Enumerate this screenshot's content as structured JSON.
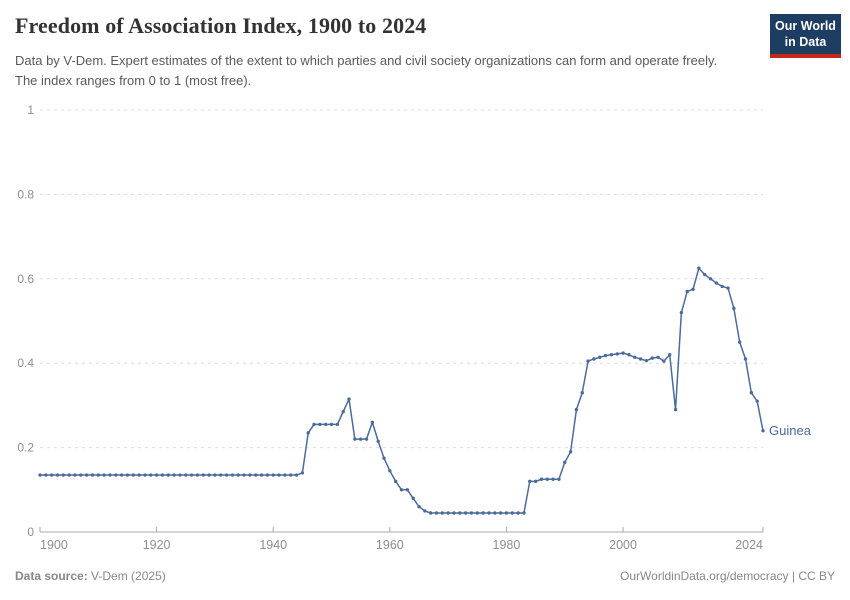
{
  "header": {
    "title": "Freedom of Association Index, 1900 to 2024",
    "subtitle": "Data by V-Dem. Expert estimates of the extent to which parties and civil society organizations can form and operate freely. The index ranges from 0 to 1 (most free).",
    "logo": {
      "line1": "Our World",
      "line2": "in Data",
      "bg_color": "#1d3d63",
      "accent_color": "#c5281c"
    }
  },
  "chart_data": {
    "type": "line",
    "title": "Freedom of Association Index, 1900 to 2024",
    "xlabel": "",
    "ylabel": "",
    "x_range": [
      1900,
      2024
    ],
    "y_range": [
      0,
      1
    ],
    "grid": true,
    "x_axis": {
      "ticks": [
        1900,
        1920,
        1940,
        1960,
        1980,
        2000,
        2024
      ]
    },
    "y_axis": {
      "ticks": [
        0,
        0.2,
        0.4,
        0.6,
        0.8,
        1
      ],
      "labels": [
        "0",
        "0.2",
        "0.4",
        "0.6",
        "0.8",
        "1"
      ]
    },
    "colors": {
      "grid": "#dcdcdc",
      "axis": "#a8a8a8",
      "tick_label": "#8e8e8e"
    },
    "series": [
      {
        "name": "Guinea",
        "color": "#4c6a9c",
        "start_year": 1900,
        "values": [
          0.135,
          0.135,
          0.135,
          0.135,
          0.135,
          0.135,
          0.135,
          0.135,
          0.135,
          0.135,
          0.135,
          0.135,
          0.135,
          0.135,
          0.135,
          0.135,
          0.135,
          0.135,
          0.135,
          0.135,
          0.135,
          0.135,
          0.135,
          0.135,
          0.135,
          0.135,
          0.135,
          0.135,
          0.135,
          0.135,
          0.135,
          0.135,
          0.135,
          0.135,
          0.135,
          0.135,
          0.135,
          0.135,
          0.135,
          0.135,
          0.135,
          0.135,
          0.135,
          0.135,
          0.135,
          0.14,
          0.235,
          0.255,
          0.255,
          0.255,
          0.255,
          0.255,
          0.285,
          0.315,
          0.22,
          0.22,
          0.22,
          0.26,
          0.215,
          0.175,
          0.145,
          0.12,
          0.1,
          0.1,
          0.08,
          0.06,
          0.05,
          0.045,
          0.045,
          0.045,
          0.045,
          0.045,
          0.045,
          0.045,
          0.045,
          0.045,
          0.045,
          0.045,
          0.045,
          0.045,
          0.045,
          0.045,
          0.045,
          0.045,
          0.12,
          0.12,
          0.125,
          0.125,
          0.125,
          0.125,
          0.165,
          0.19,
          0.29,
          0.33,
          0.405,
          0.41,
          0.414,
          0.418,
          0.42,
          0.422,
          0.424,
          0.42,
          0.414,
          0.41,
          0.406,
          0.412,
          0.414,
          0.405,
          0.42,
          0.29,
          0.52,
          0.57,
          0.575,
          0.625,
          0.61,
          0.6,
          0.59,
          0.582,
          0.578,
          0.53,
          0.45,
          0.41,
          0.33,
          0.31,
          0.24
        ]
      }
    ],
    "legend_position": "end-of-line-label"
  },
  "footer": {
    "source_label": "Data source:",
    "source_value": "V-Dem (2025)",
    "right_text": "OurWorldinData.org/democracy | CC BY"
  }
}
